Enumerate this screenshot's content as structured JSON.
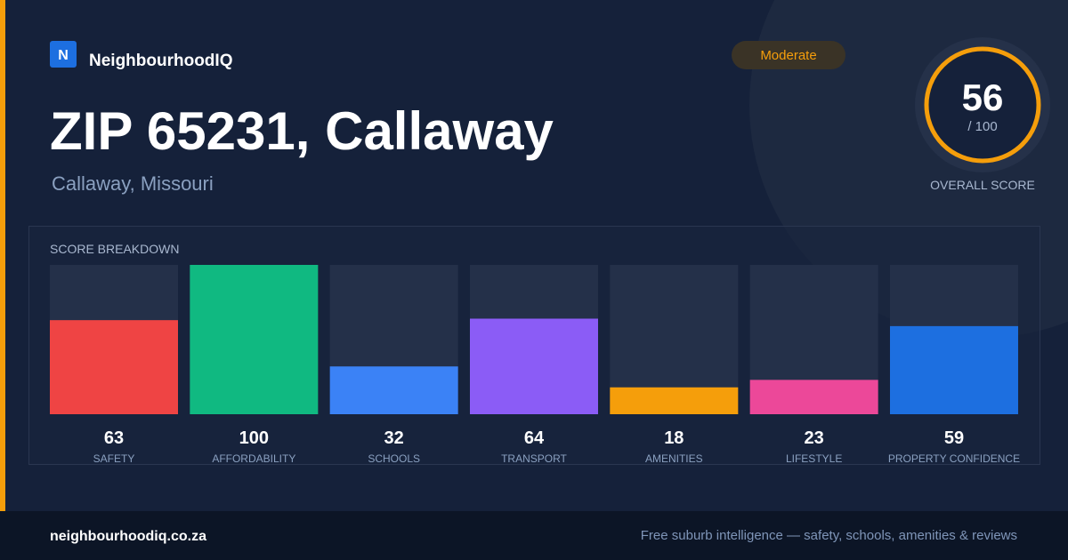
{
  "brand": {
    "logo": "N",
    "name": "NeighbourhoodIQ"
  },
  "badge": "Moderate",
  "title": "ZIP 65231, Callaway",
  "subtitle": "Callaway, Missouri",
  "score": {
    "value": 56,
    "max_label": "/ 100",
    "label": "OVERALL SCORE"
  },
  "chart_data": {
    "type": "bar",
    "title": "SCORE BREAKDOWN",
    "categories": [
      "SAFETY",
      "AFFORDABILITY",
      "SCHOOLS",
      "TRANSPORT",
      "AMENITIES",
      "LIFESTYLE",
      "PROPERTY CONFIDENCE"
    ],
    "values": [
      63,
      100,
      32,
      64,
      18,
      23,
      59
    ],
    "colors": [
      "#ef4444",
      "#10b981",
      "#3b82f6",
      "#8b5cf6",
      "#f59e0b",
      "#ec4899",
      "#1d6fe0"
    ],
    "ylim": [
      0,
      100
    ]
  },
  "footer": {
    "site": "neighbourhoodiq.co.za",
    "tagline": "Free suburb intelligence — safety, schools, amenities & reviews"
  }
}
